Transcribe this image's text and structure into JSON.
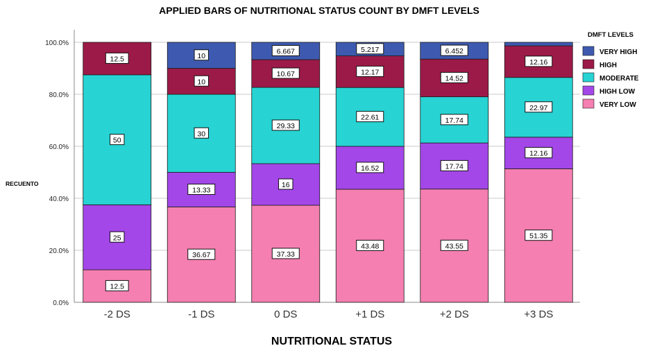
{
  "chart_data": {
    "type": "bar",
    "stacked": true,
    "title": "APPLIED BARS OF NUTRITIONAL STATUS COUNT BY DMFT LEVELS",
    "xlabel": "NUTRITIONAL STATUS",
    "ylabel": "RECUENTO",
    "ylim": [
      0,
      100
    ],
    "yticks": [
      "0.0%",
      "20.0%",
      "40.0%",
      "60.0%",
      "80.0%",
      "100.0%"
    ],
    "ytick_values": [
      0,
      20,
      40,
      60,
      80,
      100
    ],
    "categories": [
      "-2 DS",
      "-1 DS",
      "0 DS",
      "+1 DS",
      "+2 DS",
      "+3 DS"
    ],
    "legend_title": "DMFT LEVELS",
    "legend_position": "top-right",
    "series": [
      {
        "name": "VERY LOW",
        "color": "#f47fb0",
        "values": [
          12.5,
          36.67,
          37.33,
          43.48,
          43.55,
          51.35
        ],
        "labels": [
          "12.5",
          "36.67",
          "37.33",
          "43.48",
          "43.55",
          "51.35"
        ]
      },
      {
        "name": "HIGH LOW",
        "color": "#a347e8",
        "values": [
          25,
          13.33,
          16,
          16.52,
          17.74,
          12.16
        ],
        "labels": [
          "25",
          "13.33",
          "16",
          "16.52",
          "17.74",
          "12.16"
        ]
      },
      {
        "name": "MODERATE",
        "color": "#27d3d3",
        "values": [
          50,
          30,
          29.33,
          22.61,
          17.74,
          22.97
        ],
        "labels": [
          "50",
          "30",
          "29.33",
          "22.61",
          "17.74",
          "22.97"
        ]
      },
      {
        "name": "HIGH",
        "color": "#9c1a47",
        "values": [
          12.5,
          10,
          10.67,
          12.17,
          14.52,
          12.16
        ],
        "labels": [
          "12.5",
          "10",
          "10.67",
          "12.17",
          "14.52",
          "12.16"
        ]
      },
      {
        "name": "VERY HIGH",
        "color": "#3e5ab0",
        "values": [
          0,
          10,
          6.667,
          5.217,
          6.452,
          1.36
        ],
        "labels": [
          "",
          "10",
          "6.667",
          "5.217",
          "6.452",
          ""
        ]
      }
    ],
    "legend_order": [
      "VERY HIGH",
      "HIGH",
      "MODERATE",
      "HIGH LOW",
      "VERY LOW"
    ],
    "grid": true
  }
}
